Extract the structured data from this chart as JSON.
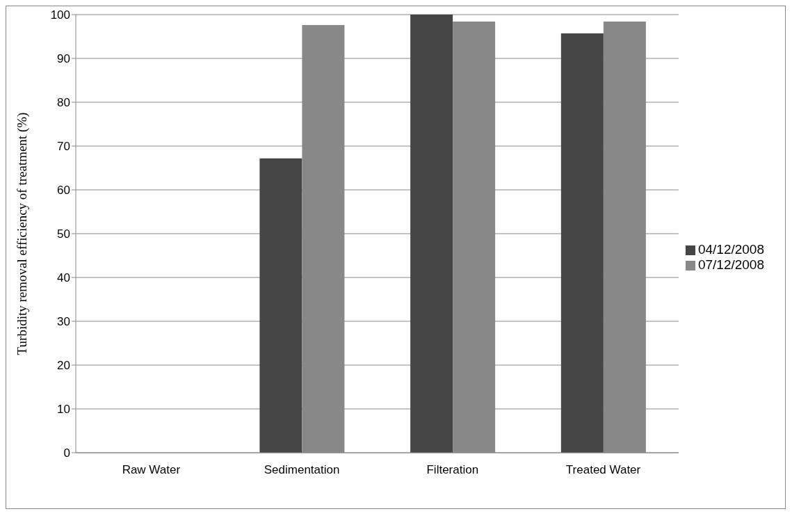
{
  "chart_data": {
    "type": "bar",
    "ylabel": "Turbidity removal efficiency of treatment (%)",
    "categories": [
      "Raw Water",
      "Sedimentation",
      "Filteration",
      "Treated Water"
    ],
    "series": [
      {
        "name": "04/12/2008",
        "color": "#454545",
        "values": [
          0,
          67.2,
          100,
          95.7
        ]
      },
      {
        "name": "07/12/2008",
        "color": "#888888",
        "values": [
          0,
          97.6,
          98.4,
          98.4
        ]
      }
    ],
    "ylim": [
      0,
      100
    ],
    "yticks": [
      0,
      10,
      20,
      30,
      40,
      50,
      60,
      70,
      80,
      90,
      100
    ],
    "grid": "y",
    "legend": "right"
  }
}
